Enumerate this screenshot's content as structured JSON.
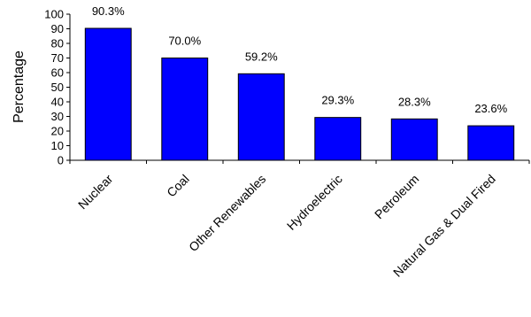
{
  "chart_data": {
    "type": "bar",
    "categories": [
      "Nuclear",
      "Coal",
      "Other Renewables",
      "Hydroelectric",
      "Petroleum",
      "Natural Gas & Dual Fired"
    ],
    "values": [
      90.3,
      70.0,
      59.2,
      29.3,
      28.3,
      23.6
    ],
    "data_labels": [
      "90.3%",
      "70.0%",
      "59.2%",
      "29.3%",
      "28.3%",
      "23.6%"
    ],
    "title": "",
    "xlabel": "",
    "ylabel": "Percentage",
    "ylim": [
      0,
      100
    ],
    "yticks": [
      0,
      10,
      20,
      30,
      40,
      50,
      60,
      70,
      80,
      90,
      100
    ],
    "grid": false,
    "legend": "none",
    "bar_color": "#0000ff",
    "bar_outline_color": "#000000"
  }
}
